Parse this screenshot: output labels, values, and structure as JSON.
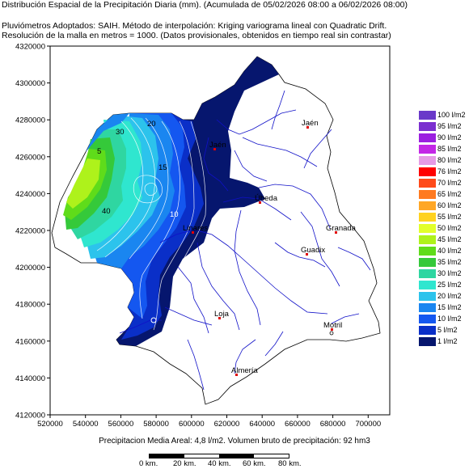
{
  "header": {
    "line1": "Distribución Espacial de la Precipitación Diaria (mm). (Acumulada de 05/02/2026 08:00 a 06/02/2026 08:00)",
    "line2": "Pluviómetros Adoptados: SAIH.  Método de interpolación: Kriging variograma lineal con Quadratic Drift.",
    "line3": "Resolución de la malla en metros = 1000. (Datos provisionales, obtenidos en tiempo real sin contrastar)"
  },
  "axes": {
    "y_ticks": [
      "4320000",
      "4300000",
      "4280000",
      "4260000",
      "4240000",
      "4220000",
      "4200000",
      "4180000",
      "4160000",
      "4140000",
      "4120000"
    ],
    "x_ticks": [
      "520000",
      "540000",
      "560000",
      "580000",
      "600000",
      "620000",
      "640000",
      "660000",
      "680000",
      "700000"
    ]
  },
  "legend": [
    {
      "label": "100 l/m2",
      "color": "#6a39c9"
    },
    {
      "label": "95 l/m2",
      "color": "#7b2fd0"
    },
    {
      "label": "90 l/m2",
      "color": "#9b1fe0"
    },
    {
      "label": "85 l/m2",
      "color": "#c327e6"
    },
    {
      "label": "80 l/m2",
      "color": "#e69be6"
    },
    {
      "label": "76 l/m2",
      "color": "#ff0000"
    },
    {
      "label": "70 l/m2",
      "color": "#ff4a1a"
    },
    {
      "label": "65 l/m2",
      "color": "#ff7a20"
    },
    {
      "label": "60 l/m2",
      "color": "#ffa726"
    },
    {
      "label": "55 l/m2",
      "color": "#ffd21f"
    },
    {
      "label": "50 l/m2",
      "color": "#e2ff2a"
    },
    {
      "label": "45 l/m2",
      "color": "#aef21b"
    },
    {
      "label": "40 l/m2",
      "color": "#5fdc1a"
    },
    {
      "label": "35 l/m2",
      "color": "#35c93a"
    },
    {
      "label": "30 l/m2",
      "color": "#2fd6a1"
    },
    {
      "label": "25 l/m2",
      "color": "#2fe6cf"
    },
    {
      "label": "20 l/m2",
      "color": "#2cc3ec"
    },
    {
      "label": "15 l/m2",
      "color": "#1a86f0"
    },
    {
      "label": "10 l/m2",
      "color": "#1457f0"
    },
    {
      "label": "5 l/m2",
      "color": "#0a2fc8"
    },
    {
      "label": "1 l/m2",
      "color": "#06166e"
    }
  ],
  "map_labels": {
    "contours": [
      "30",
      "20",
      "15",
      "10",
      "5",
      "40"
    ],
    "towns": [
      "Jaén",
      "Jaén",
      "Úbeda",
      "Linares",
      "Granada",
      "Guadix",
      "Loja",
      "Motril",
      "Almería"
    ]
  },
  "footer": {
    "summary": "Precipitacion Media Areal: 4,8 l/m2. Volumen bruto de precipitación: 92 hm3"
  },
  "scale": {
    "labels": [
      "0 km.",
      "20 km.",
      "40 km.",
      "60 km.",
      "80 km."
    ]
  }
}
